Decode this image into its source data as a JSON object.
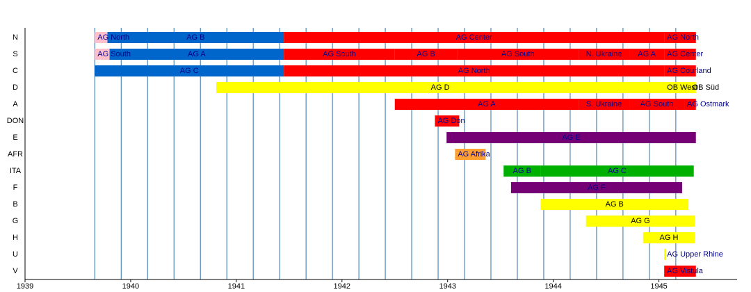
{
  "chart_data": {
    "type": "timeline",
    "xlim": [
      1939,
      1945.74
    ],
    "xticks": [
      1939,
      1940,
      1941,
      1942,
      1943,
      1944,
      1945
    ],
    "x_grid": [
      1939.66,
      1939.91,
      1940.16,
      1940.41,
      1940.66,
      1940.91,
      1941.16,
      1941.41,
      1941.66,
      1941.91,
      1942.16,
      1942.41,
      1942.66,
      1942.91,
      1943.16,
      1943.41,
      1943.66,
      1943.91,
      1944.16,
      1944.41,
      1944.66,
      1944.91,
      1945.16
    ],
    "grid_color": "#2f6fa8",
    "label_color": "#00008b",
    "rows": [
      {
        "name": "N",
        "bars": [
          {
            "start": 1939.66,
            "end": 1939.78,
            "label": "AG North",
            "color": "#ffc0cb"
          },
          {
            "start": 1939.78,
            "end": 1941.45,
            "label": "AG B",
            "color": "#0066cc"
          },
          {
            "start": 1941.45,
            "end": 1945.05,
            "label": "AG Center",
            "color": "#ff0000"
          },
          {
            "start": 1945.05,
            "end": 1945.35,
            "label": "AG North",
            "color": "#ff0000"
          }
        ]
      },
      {
        "name": "S",
        "bars": [
          {
            "start": 1939.66,
            "end": 1939.8,
            "label": "AG South",
            "color": "#ffc0cb"
          },
          {
            "start": 1939.8,
            "end": 1941.45,
            "label": "AG A",
            "color": "#0066cc"
          },
          {
            "start": 1941.45,
            "end": 1942.5,
            "label": "AG South",
            "color": "#ff0000"
          },
          {
            "start": 1942.5,
            "end": 1943.09,
            "label": "AG B",
            "color": "#ff0000"
          },
          {
            "start": 1943.09,
            "end": 1944.24,
            "label": "AG South",
            "color": "#ff0000"
          },
          {
            "start": 1944.24,
            "end": 1944.72,
            "label": "N. Ukraine",
            "color": "#ff0000"
          },
          {
            "start": 1944.72,
            "end": 1945.05,
            "label": "AG A",
            "color": "#ff0000"
          },
          {
            "start": 1945.05,
            "end": 1945.35,
            "label": "AG Center",
            "color": "#ff0000"
          }
        ]
      },
      {
        "name": "C",
        "bars": [
          {
            "start": 1939.66,
            "end": 1941.45,
            "label": "AG C",
            "color": "#0066cc"
          },
          {
            "start": 1941.45,
            "end": 1945.05,
            "label": "AG North",
            "color": "#ff0000"
          },
          {
            "start": 1945.05,
            "end": 1945.35,
            "label": "AG Courland",
            "color": "#ff0000"
          }
        ]
      },
      {
        "name": "D",
        "bars": [
          {
            "start": 1940.81,
            "end": 1945.05,
            "label": "AG D",
            "color": "#ffff00",
            "label_color": "#000000"
          },
          {
            "start": 1945.05,
            "end": 1945.29,
            "label": "OB West",
            "color": "#ffff00",
            "label_color": "#000000"
          },
          {
            "start": 1945.29,
            "end": 1945.35,
            "label": "OB Süd",
            "color": "#ffff00",
            "label_color": "#000000"
          }
        ]
      },
      {
        "name": "A",
        "bars": [
          {
            "start": 1942.5,
            "end": 1944.24,
            "label": "AG A",
            "color": "#ff0000"
          },
          {
            "start": 1944.24,
            "end": 1944.72,
            "label": "S. Ukraine",
            "color": "#ff0000"
          },
          {
            "start": 1944.72,
            "end": 1945.24,
            "label": "AG South",
            "color": "#ff0000"
          },
          {
            "start": 1945.24,
            "end": 1945.35,
            "label": "AG Ostmark",
            "color": "#ff0000"
          }
        ]
      },
      {
        "name": "DON",
        "bars": [
          {
            "start": 1942.88,
            "end": 1943.11,
            "label": "AG Don",
            "color": "#ff0000"
          }
        ]
      },
      {
        "name": "E",
        "bars": [
          {
            "start": 1942.99,
            "end": 1945.35,
            "label": "AG E",
            "color": "#750075"
          }
        ]
      },
      {
        "name": "AFR",
        "bars": [
          {
            "start": 1943.07,
            "end": 1943.36,
            "label": "AG Afrika",
            "color": "#ffa033"
          }
        ]
      },
      {
        "name": "ITA",
        "bars": [
          {
            "start": 1943.53,
            "end": 1943.88,
            "label": "AG B",
            "color": "#00b000"
          },
          {
            "start": 1943.88,
            "end": 1945.33,
            "label": "AG C",
            "color": "#00b000"
          }
        ]
      },
      {
        "name": "F",
        "bars": [
          {
            "start": 1943.6,
            "end": 1945.22,
            "label": "AG F",
            "color": "#750075"
          }
        ]
      },
      {
        "name": "B",
        "bars": [
          {
            "start": 1943.88,
            "end": 1945.28,
            "label": "AG B",
            "color": "#ffff00",
            "label_color": "#000000"
          }
        ]
      },
      {
        "name": "G",
        "bars": [
          {
            "start": 1944.31,
            "end": 1945.34,
            "label": "AG G",
            "color": "#ffff00",
            "label_color": "#000000"
          }
        ]
      },
      {
        "name": "H",
        "bars": [
          {
            "start": 1944.85,
            "end": 1945.34,
            "label": "AG H",
            "color": "#ffff00",
            "label_color": "#000000"
          }
        ]
      },
      {
        "name": "U",
        "bars": [
          {
            "start": 1945.05,
            "end": 1945.07,
            "label": "AG Upper Rhine",
            "color": "#ffff00"
          }
        ]
      },
      {
        "name": "V",
        "bars": [
          {
            "start": 1945.05,
            "end": 1945.35,
            "label": "AG Vistula",
            "color": "#ff0000"
          }
        ]
      }
    ]
  }
}
